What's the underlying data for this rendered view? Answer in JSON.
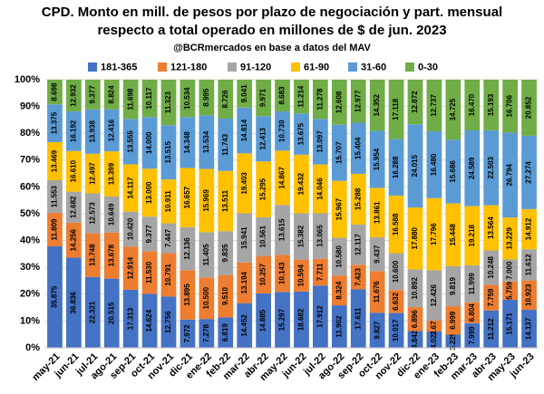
{
  "chart_data": {
    "type": "stacked_bar_percent",
    "title": "CPD. Monto en mill. de pesos por plazo de negociación y part. mensual",
    "subtitle": "respecto a total operado en millones de $ de jun. 2023",
    "source": "@BCRmercados en base a datos del MAV",
    "categories": [
      "may-21",
      "jun-21",
      "jul-21",
      "ago-21",
      "sep-21",
      "oct-21",
      "nov-21",
      "dic-21",
      "ene-22",
      "feb-22",
      "mar-22",
      "abr-22",
      "may-22",
      "jun-22",
      "jul-22",
      "ago-22",
      "sep-22",
      "oct-22",
      "nov-22",
      "dic-22",
      "ene-23",
      "feb-23",
      "mar-23",
      "abr-23",
      "may-23",
      "jun-23"
    ],
    "ylim": [
      0,
      100
    ],
    "yticks": [
      {
        "value": 0,
        "label": "0%"
      },
      {
        "value": 10,
        "label": "10%"
      },
      {
        "value": 20,
        "label": "20%"
      },
      {
        "value": 30,
        "label": "30%"
      },
      {
        "value": 40,
        "label": "40%"
      },
      {
        "value": 50,
        "label": "50%"
      },
      {
        "value": 60,
        "label": "60%"
      },
      {
        "value": 70,
        "label": "70%"
      },
      {
        "value": 80,
        "label": "80%"
      },
      {
        "value": 90,
        "label": "90%"
      },
      {
        "value": 100,
        "label": "100%"
      }
    ],
    "grid": true,
    "legend": "top",
    "series": [
      {
        "name": "181-365",
        "color": "#4472c4",
        "values": [
          35875,
          36836,
          22321,
          20515,
          17313,
          14624,
          12756,
          7972,
          7278,
          6819,
          14452,
          14885,
          15297,
          18682,
          17912,
          11902,
          17611,
          9827,
          10017,
          4842,
          4023,
          3229,
          7999,
          11212,
          15171,
          14137
        ],
        "value_labels": [
          "35.875",
          "36.836",
          "22.321",
          "20.515",
          "17.313",
          "14.624",
          "12.756",
          "7.972",
          "7.278",
          "6.819",
          "14.452",
          "14.885",
          "15.297",
          "18.682",
          "17.912",
          "11.902",
          "17.611",
          "9.827",
          "10.017",
          "4.842",
          "4.023",
          "3.229",
          "7.999",
          "11.212",
          "15.171",
          "14.137"
        ]
      },
      {
        "name": "121-180",
        "color": "#ed7d31",
        "values": [
          11809,
          14256,
          13748,
          13678,
          12914,
          11530,
          10791,
          13895,
          10500,
          9510,
          13194,
          10257,
          10143,
          10594,
          7711,
          8324,
          7423,
          11676,
          6632,
          6896,
          2672,
          6999,
          6804,
          7759,
          5759,
          10923
        ],
        "value_labels": [
          "11.809",
          "14.256",
          "13.748",
          "13.678",
          "12.914",
          "11.530",
          "10.791",
          "13.895",
          "10.500",
          "9.510",
          "13.194",
          "10.257",
          "10.143",
          "10.594",
          "7.711",
          "8.324",
          "7.423",
          "11.676",
          "6.632",
          "6.896",
          "2.672",
          "6.999",
          "6.804",
          "7.759",
          "5.759",
          "10.923"
        ]
      },
      {
        "name": "91-120",
        "color": "#a5a5a5",
        "values": [
          11553,
          12682,
          12573,
          10649,
          10420,
          9377,
          7447,
          12136,
          11405,
          9835,
          15941,
          10561,
          13615,
          15382,
          13065,
          10580,
          12117,
          9437,
          10600,
          10892,
          12426,
          9819,
          11999,
          10248,
          7000,
          11612
        ],
        "value_labels": [
          "11.553",
          "12.682",
          "12.573",
          "10.649",
          "10.420",
          "9.377",
          "7.447",
          "12.136",
          "11.405",
          "9.835",
          "15.941",
          "10.561",
          "13.615",
          "15.382",
          "13.065",
          "10.580",
          "12.117",
          "9.437",
          "10.600",
          "10.892",
          "12.426",
          "9.819",
          "11.999",
          "10.248",
          "7.000",
          "11.612"
        ]
      },
      {
        "name": "61-90",
        "color": "#ffc000",
        "values": [
          13469,
          16610,
          12497,
          13399,
          14117,
          13000,
          10911,
          16657,
          15969,
          13511,
          19403,
          15295,
          14867,
          19432,
          14046,
          15967,
          15288,
          13861,
          16588,
          17880,
          17796,
          15448,
          19218,
          13564,
          13229,
          14912
        ],
        "value_labels": [
          "13.469",
          "16.610",
          "12.497",
          "13.399",
          "14.117",
          "13.000",
          "10.911",
          "16.657",
          "15.969",
          "13.511",
          "19.403",
          "15.295",
          "14.867",
          "19.432",
          "14.046",
          "15.967",
          "15.288",
          "13.861",
          "16.588",
          "17.880",
          "17.796",
          "15.448",
          "19.218",
          "13.564",
          "13.229",
          "14.912"
        ]
      },
      {
        "name": "31-60",
        "color": "#5b9bd5",
        "values": [
          13375,
          16192,
          13938,
          12416,
          13555,
          14000,
          13515,
          14348,
          13534,
          11743,
          14814,
          12413,
          10730,
          13675,
          13097,
          15707,
          15404,
          15954,
          16288,
          24015,
          16480,
          15686,
          24589,
          22503,
          26794,
          27274
        ],
        "value_labels": [
          "13.375",
          "16.192",
          "13.938",
          "12.416",
          "13.555",
          "14.000",
          "13.515",
          "14.348",
          "13.534",
          "11.743",
          "14.814",
          "12.413",
          "10.730",
          "13.675",
          "13.097",
          "15.707",
          "15.404",
          "15.954",
          "16.288",
          "24.015",
          "16.480",
          "15.686",
          "24.589",
          "22.503",
          "26.794",
          "27.274"
        ]
      },
      {
        "name": "0-30",
        "color": "#70ad47",
        "values": [
          8698,
          12932,
          9377,
          8824,
          11698,
          10117,
          11323,
          10534,
          8995,
          8726,
          9041,
          9971,
          8683,
          11214,
          11278,
          12608,
          12977,
          14352,
          17118,
          12872,
          12737,
          14725,
          16470,
          15193,
          16706,
          20852
        ],
        "value_labels": [
          "8.698",
          "12.932",
          "9.377",
          "8.824",
          "11.698",
          "10.117",
          "11.323",
          "10.534",
          "8.995",
          "8.726",
          "9.041",
          "9.971",
          "8.683",
          "11.214",
          "11.278",
          "12.608",
          "12.977",
          "14.352",
          "17.118",
          "12.872",
          "12.737",
          "14.725",
          "16.470",
          "15.193",
          "16.706",
          "20.852"
        ]
      }
    ]
  }
}
